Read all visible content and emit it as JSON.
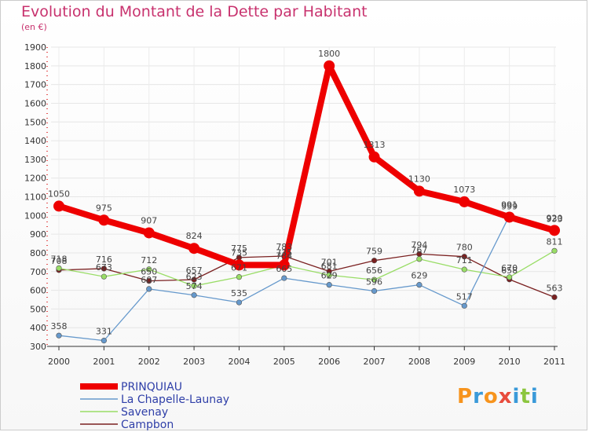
{
  "header": {
    "title": "Evolution du Montant de la Dette par Habitant",
    "unit": "(en €)"
  },
  "logo": {
    "text": "Proxiti",
    "letters": [
      "P",
      "r",
      "o",
      "x",
      "i",
      "t",
      "i"
    ]
  },
  "colors": {
    "title": "#c8326e",
    "PRINQUIAU": "#ee0000",
    "La Chapelle-Launay": "#6699cc",
    "Savenay": "#99dd66",
    "Campbon": "#7a2020"
  },
  "chart_data": {
    "type": "line",
    "title": "Evolution du Montant de la Dette par Habitant",
    "ylabel": "(en €)",
    "xlabel": "",
    "ylim": [
      300,
      1900
    ],
    "yticks": [
      300,
      400,
      500,
      600,
      700,
      800,
      900,
      1000,
      1100,
      1200,
      1300,
      1400,
      1500,
      1600,
      1700,
      1800,
      1900
    ],
    "categories": [
      "2000",
      "2001",
      "2002",
      "2003",
      "2004",
      "2005",
      "2006",
      "2007",
      "2008",
      "2009",
      "2010",
      "2011"
    ],
    "legend_position": "bottom-left",
    "series": [
      {
        "name": "PRINQUIAU",
        "values": [
          1050,
          975,
          907,
          824,
          735,
          735,
          1800,
          1313,
          1130,
          1073,
          991,
          920
        ]
      },
      {
        "name": "La Chapelle-Launay",
        "values": [
          358,
          331,
          607,
          574,
          535,
          665,
          629,
          596,
          629,
          517,
          999,
          933
        ]
      },
      {
        "name": "Savenay",
        "values": [
          718,
          673,
          712,
          623,
          671,
          734,
          681,
          656,
          767,
          711,
          670,
          811
        ]
      },
      {
        "name": "Campbon",
        "values": [
          708,
          716,
          650,
          657,
          775,
          783,
          701,
          759,
          794,
          780,
          658,
          563
        ]
      }
    ]
  }
}
